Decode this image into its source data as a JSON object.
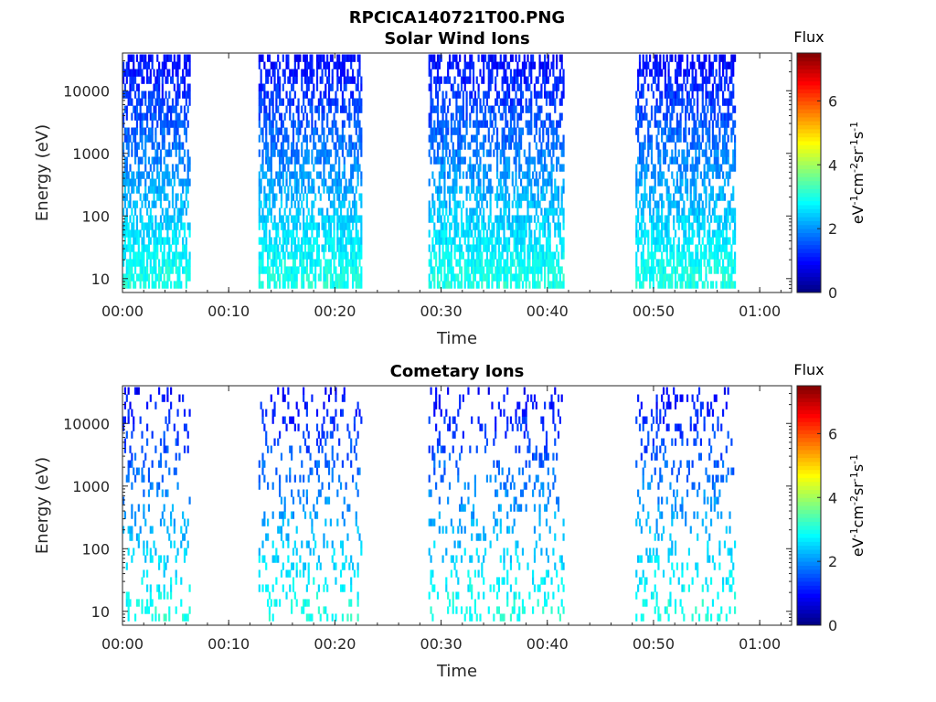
{
  "figure": {
    "title": "RPCICA140721T00.PNG"
  },
  "colors": {
    "axis": "#262626",
    "colormap": [
      "#00007f",
      "#0000ff",
      "#007fff",
      "#00ffff",
      "#7fff7f",
      "#ffff00",
      "#ff7f00",
      "#ff0000",
      "#7f0000"
    ]
  },
  "chart_data": [
    {
      "type": "heatmap",
      "title": "Solar Wind Ions",
      "xlabel": "Time",
      "ylabel": "Energy (eV)",
      "y_scale": "log",
      "xlim": [
        "00:00",
        "01:03"
      ],
      "ylim": [
        6,
        40000
      ],
      "xticks": [
        "00:00",
        "00:10",
        "00:20",
        "00:30",
        "00:40",
        "00:50",
        "01:00"
      ],
      "yticks": [
        "10",
        "100",
        "1000",
        "10000"
      ],
      "colorbar": {
        "title": "Flux",
        "label": "eV-1cm-2sr-1s-1",
        "range": [
          0,
          7.5
        ],
        "ticks": [
          "0",
          "2",
          "4",
          "6"
        ]
      },
      "data_intervals_minutes": [
        [
          0.0,
          6.3
        ],
        [
          12.8,
          22.5
        ],
        [
          28.8,
          41.5
        ],
        [
          48.3,
          57.6
        ]
      ],
      "value_trend": "flux highest near 10 eV (~3) decreasing to ~1 at 30000 eV",
      "seed": 7,
      "density": 0.55
    },
    {
      "type": "heatmap",
      "title": "Cometary Ions",
      "xlabel": "Time",
      "ylabel": "Energy (eV)",
      "y_scale": "log",
      "xlim": [
        "00:00",
        "01:03"
      ],
      "ylim": [
        6,
        40000
      ],
      "xticks": [
        "00:00",
        "00:10",
        "00:20",
        "00:30",
        "00:40",
        "00:50",
        "01:00"
      ],
      "yticks": [
        "10",
        "100",
        "1000",
        "10000"
      ],
      "colorbar": {
        "title": "Flux",
        "label": "eV-1cm-2sr-1s-1",
        "range": [
          0,
          7.5
        ],
        "ticks": [
          "0",
          "2",
          "4",
          "6"
        ]
      },
      "data_intervals_minutes": [
        [
          0.0,
          6.3
        ],
        [
          12.8,
          22.5
        ],
        [
          28.8,
          41.5
        ],
        [
          48.3,
          57.6
        ]
      ],
      "value_trend": "flux highest near 10 eV (~3) decreasing to ~1 at 30000 eV",
      "seed": 13,
      "density": 0.16
    }
  ]
}
